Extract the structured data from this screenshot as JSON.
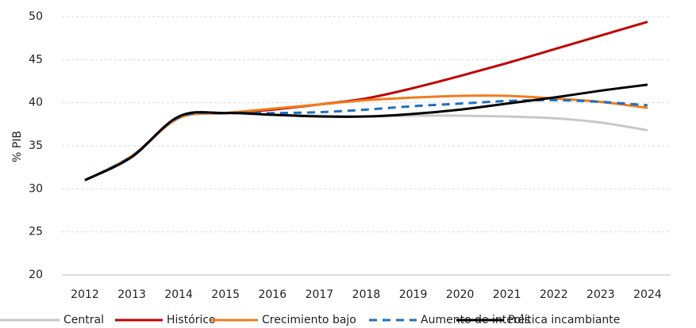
{
  "chart_data": {
    "type": "line",
    "y_label": "% PIB",
    "categories": [
      "2012",
      "2013",
      "2014",
      "2015",
      "2016",
      "2017",
      "2018",
      "2019",
      "2020",
      "2021",
      "2022",
      "2023",
      "2024"
    ],
    "series": [
      {
        "name": "Central",
        "color": "#c8c8c8",
        "dash": false,
        "values": [
          31,
          33.8,
          38.3,
          38.8,
          38.6,
          38.5,
          38.4,
          38.5,
          38.5,
          38.4,
          38.2,
          37.7,
          36.8
        ]
      },
      {
        "name": "Histórico",
        "color": "#c00000",
        "dash": false,
        "values": [
          31,
          33.8,
          38.3,
          38.8,
          39.2,
          39.8,
          40.5,
          41.7,
          43.1,
          44.6,
          46.2,
          47.8,
          49.4
        ]
      },
      {
        "name": "Crecimiento bajo",
        "color": "#f07c1e",
        "dash": false,
        "values": [
          31,
          33.8,
          38.2,
          38.8,
          39.3,
          39.8,
          40.3,
          40.6,
          40.8,
          40.8,
          40.5,
          40.1,
          39.4
        ]
      },
      {
        "name": "Aumento de interés",
        "color": "#1f6fbf",
        "dash": true,
        "values": [
          31,
          33.8,
          38.3,
          38.8,
          38.8,
          38.9,
          39.2,
          39.6,
          39.9,
          40.2,
          40.3,
          40.1,
          39.7
        ]
      },
      {
        "name": "Política incambiante",
        "color": "#000000",
        "dash": false,
        "values": [
          31,
          33.7,
          38.4,
          38.8,
          38.6,
          38.4,
          38.4,
          38.7,
          39.2,
          39.9,
          40.6,
          41.4,
          42.1
        ]
      }
    ],
    "ylim": [
      20,
      50
    ],
    "yticks": [
      20,
      25,
      30,
      35,
      40,
      45,
      50
    ],
    "grid": true,
    "legend": "bottom"
  }
}
